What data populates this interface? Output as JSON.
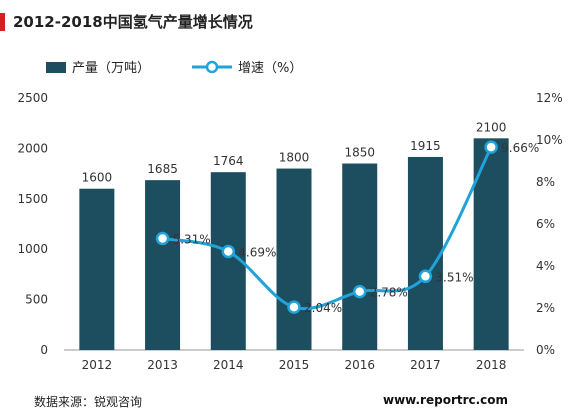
{
  "chart_data": {
    "type": "bar",
    "title": "2012-2018中国氢气产量增长情况",
    "categories": [
      "2012",
      "2013",
      "2014",
      "2015",
      "2016",
      "2017",
      "2018"
    ],
    "series": [
      {
        "name": "产量（万吨）",
        "type": "bar",
        "axis": "left",
        "values": [
          1600,
          1685,
          1764,
          1800,
          1850,
          1915,
          2100
        ],
        "labels": [
          "1600",
          "1685",
          "1764",
          "1800",
          "1850",
          "1915",
          "2100"
        ]
      },
      {
        "name": "增速（%）",
        "type": "line",
        "axis": "right",
        "values": [
          null,
          5.31,
          4.69,
          2.04,
          2.78,
          3.51,
          9.66
        ],
        "labels": [
          "",
          "5.31%",
          "4.69%",
          "2.04%",
          "2.78%",
          "3.51%",
          "9.66%"
        ]
      }
    ],
    "ylim_left": [
      0,
      2500
    ],
    "yticks_left": [
      "0",
      "500",
      "1000",
      "1500",
      "2000",
      "2500"
    ],
    "ylim_right": [
      0,
      12
    ],
    "yticks_right": [
      "0%",
      "2%",
      "4%",
      "6%",
      "8%",
      "10%",
      "12%"
    ],
    "legend_position": "top",
    "colors": {
      "bar": "#1d4e5f",
      "line": "#1fa3d9",
      "title_accent": "#d6201f"
    }
  },
  "footer": {
    "source": "数据来源：锐观咨询",
    "site": "www.reportrc.com"
  }
}
